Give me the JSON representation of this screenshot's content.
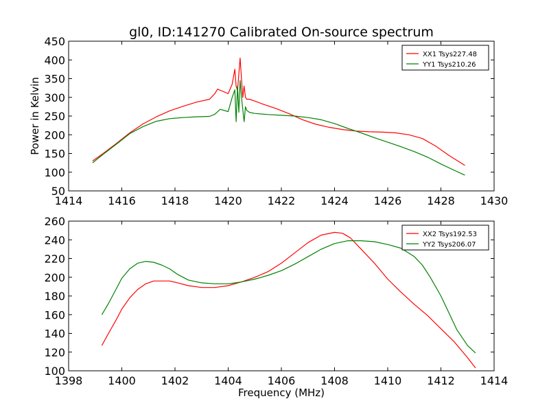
{
  "title": "gl0, ID:141270 Calibrated On-source spectrum",
  "chart_data": [
    {
      "type": "line",
      "title": "gl0, ID:141270 Calibrated On-source spectrum",
      "xlabel": "",
      "ylabel": "Power in Kelvin",
      "xlim": [
        1414,
        1430
      ],
      "ylim": [
        50,
        450
      ],
      "xticks": [
        1414,
        1416,
        1418,
        1420,
        1422,
        1424,
        1426,
        1428,
        1430
      ],
      "yticks": [
        50,
        100,
        150,
        200,
        250,
        300,
        350,
        400,
        450
      ],
      "legend_position": "top-right",
      "series": [
        {
          "name": "XX1 Tsys227.48",
          "color": "#ff0000",
          "x": [
            1414.9,
            1415.3,
            1415.8,
            1416.3,
            1416.8,
            1417.3,
            1417.8,
            1418.3,
            1418.8,
            1419.3,
            1419.5,
            1419.6,
            1419.8,
            1420.0,
            1420.15,
            1420.25,
            1420.3,
            1420.35,
            1420.45,
            1420.5,
            1420.55,
            1420.6,
            1420.65,
            1420.7,
            1420.8,
            1421.0,
            1421.3,
            1421.8,
            1422.3,
            1422.8,
            1423.3,
            1423.8,
            1424.3,
            1424.8,
            1425.3,
            1425.8,
            1426.3,
            1426.8,
            1427.3,
            1427.8,
            1428.3,
            1428.9
          ],
          "y": [
            130,
            150,
            177,
            205,
            229,
            248,
            264,
            276,
            287,
            295,
            310,
            322,
            316,
            310,
            335,
            375,
            330,
            318,
            405,
            350,
            300,
            330,
            300,
            295,
            295,
            290,
            282,
            270,
            256,
            240,
            228,
            220,
            214,
            210,
            208,
            207,
            205,
            200,
            190,
            170,
            145,
            118
          ]
        },
        {
          "name": "YY1 Tsys210.26",
          "color": "#008000",
          "x": [
            1414.9,
            1415.3,
            1415.8,
            1416.3,
            1416.8,
            1417.3,
            1417.8,
            1418.3,
            1418.8,
            1419.3,
            1419.5,
            1419.7,
            1420.0,
            1420.15,
            1420.25,
            1420.3,
            1420.35,
            1420.4,
            1420.45,
            1420.5,
            1420.6,
            1420.65,
            1420.7,
            1420.8,
            1421.0,
            1421.5,
            1422.0,
            1422.5,
            1423.0,
            1423.5,
            1424.0,
            1424.5,
            1425.0,
            1425.5,
            1426.0,
            1426.5,
            1427.0,
            1427.5,
            1428.0,
            1428.5,
            1428.9
          ],
          "y": [
            125,
            148,
            175,
            203,
            222,
            236,
            243,
            246,
            248,
            249,
            255,
            268,
            262,
            300,
            320,
            235,
            330,
            260,
            345,
            300,
            235,
            275,
            265,
            260,
            257,
            254,
            252,
            250,
            246,
            240,
            230,
            217,
            205,
            192,
            180,
            168,
            155,
            140,
            122,
            105,
            92
          ]
        }
      ]
    },
    {
      "type": "line",
      "title": "",
      "xlabel": "Frequency (MHz)",
      "ylabel": "",
      "xlim": [
        1398,
        1414
      ],
      "ylim": [
        100,
        260
      ],
      "xticks": [
        1398,
        1400,
        1402,
        1404,
        1406,
        1408,
        1410,
        1412,
        1414
      ],
      "yticks": [
        100,
        120,
        140,
        160,
        180,
        200,
        220,
        240,
        260
      ],
      "legend_position": "top-right",
      "series": [
        {
          "name": "XX2 Tsys192.53",
          "color": "#ff0000",
          "x": [
            1399.25,
            1399.5,
            1399.8,
            1400.0,
            1400.3,
            1400.6,
            1400.9,
            1401.2,
            1401.5,
            1401.8,
            1402.1,
            1402.5,
            1403.0,
            1403.5,
            1404.0,
            1404.5,
            1405.0,
            1405.5,
            1406.0,
            1406.5,
            1407.0,
            1407.5,
            1408.0,
            1408.3,
            1408.6,
            1409.0,
            1409.5,
            1410.0,
            1410.5,
            1411.0,
            1411.5,
            1412.0,
            1412.5,
            1413.0,
            1413.3
          ],
          "y": [
            127,
            140,
            155,
            166,
            178,
            187,
            193,
            196,
            196,
            196,
            194,
            191,
            189,
            189,
            191,
            195,
            200,
            206,
            215,
            226,
            237,
            245,
            248,
            247,
            242,
            230,
            215,
            198,
            184,
            171,
            159,
            145,
            131,
            114,
            103
          ]
        },
        {
          "name": "YY2 Tsys206.07",
          "color": "#008000",
          "x": [
            1399.25,
            1399.5,
            1399.8,
            1400.0,
            1400.3,
            1400.6,
            1400.9,
            1401.2,
            1401.5,
            1401.8,
            1402.1,
            1402.5,
            1403.0,
            1403.5,
            1404.0,
            1404.5,
            1405.0,
            1405.5,
            1406.0,
            1406.5,
            1407.0,
            1407.5,
            1408.0,
            1408.5,
            1409.0,
            1409.5,
            1410.0,
            1410.5,
            1411.0,
            1411.3,
            1411.6,
            1412.0,
            1412.3,
            1412.6,
            1413.0,
            1413.3
          ],
          "y": [
            160,
            172,
            188,
            199,
            209,
            215,
            217,
            216,
            213,
            209,
            203,
            197,
            194,
            193,
            193,
            195,
            198,
            202,
            207,
            214,
            222,
            230,
            236,
            239,
            239,
            238,
            235,
            231,
            222,
            213,
            200,
            180,
            162,
            144,
            127,
            119
          ]
        }
      ]
    }
  ]
}
